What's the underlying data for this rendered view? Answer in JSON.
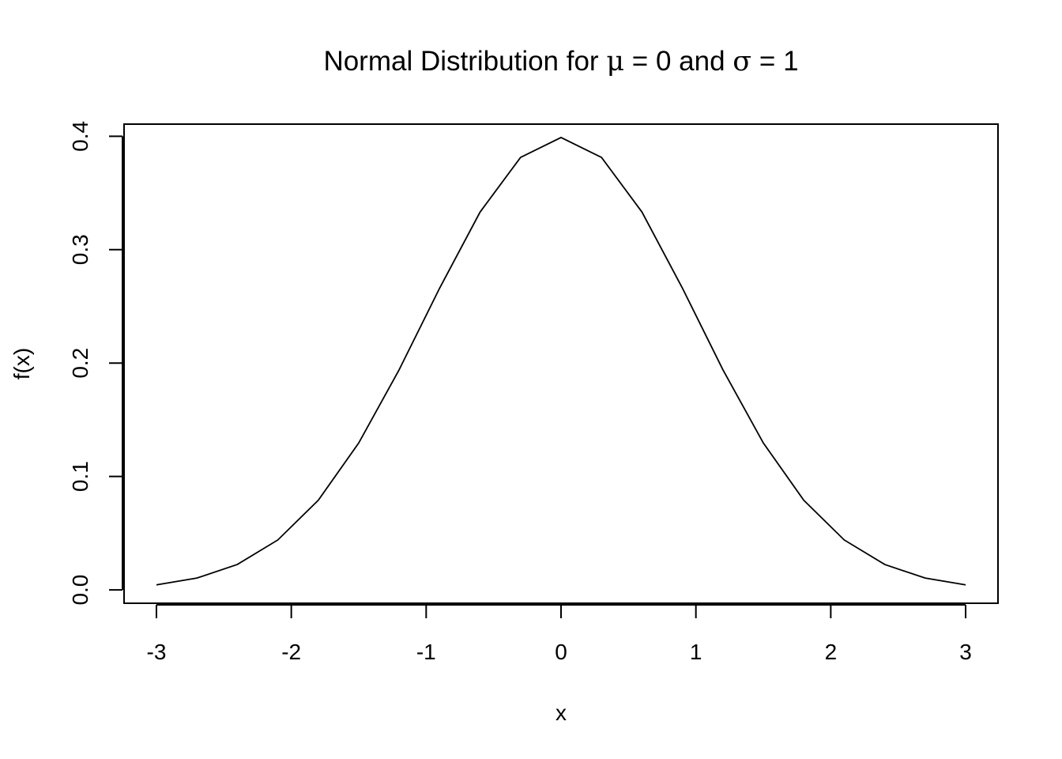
{
  "chart_data": {
    "type": "line",
    "title": {
      "prefix": "Normal Distribution for ",
      "mu_symbol": "μ",
      "mu_eq": " = 0",
      "middle": "  and  ",
      "sigma_symbol": "σ",
      "sigma_eq": " = 1"
    },
    "xlabel": "x",
    "ylabel": "f(x)",
    "xlim": [
      -3.24,
      3.24
    ],
    "ylim": [
      -0.0118,
      0.4107
    ],
    "x_ticks": [
      -3,
      -2,
      -1,
      0,
      1,
      2,
      3
    ],
    "x_tick_labels": [
      "-3",
      "-2",
      "-1",
      "0",
      "1",
      "2",
      "3"
    ],
    "y_ticks": [
      0.0,
      0.1,
      0.2,
      0.3,
      0.4
    ],
    "y_tick_labels": [
      "0.0",
      "0.1",
      "0.2",
      "0.3",
      "0.4"
    ],
    "grid": false,
    "legend": "none",
    "series": [
      {
        "color": "#000000",
        "x": [
          -3.0,
          -2.7,
          -2.4,
          -2.1,
          -1.8,
          -1.5,
          -1.2,
          -0.9,
          -0.6,
          -0.3,
          0.0,
          0.3,
          0.6,
          0.9,
          1.2,
          1.5,
          1.8,
          2.1,
          2.4,
          2.7,
          3.0
        ],
        "y": [
          0.0044,
          0.0104,
          0.0224,
          0.044,
          0.079,
          0.1295,
          0.1942,
          0.2661,
          0.3332,
          0.3814,
          0.3989,
          0.3814,
          0.3332,
          0.2661,
          0.1942,
          0.1295,
          0.079,
          0.044,
          0.0224,
          0.0104,
          0.0044
        ]
      }
    ]
  }
}
